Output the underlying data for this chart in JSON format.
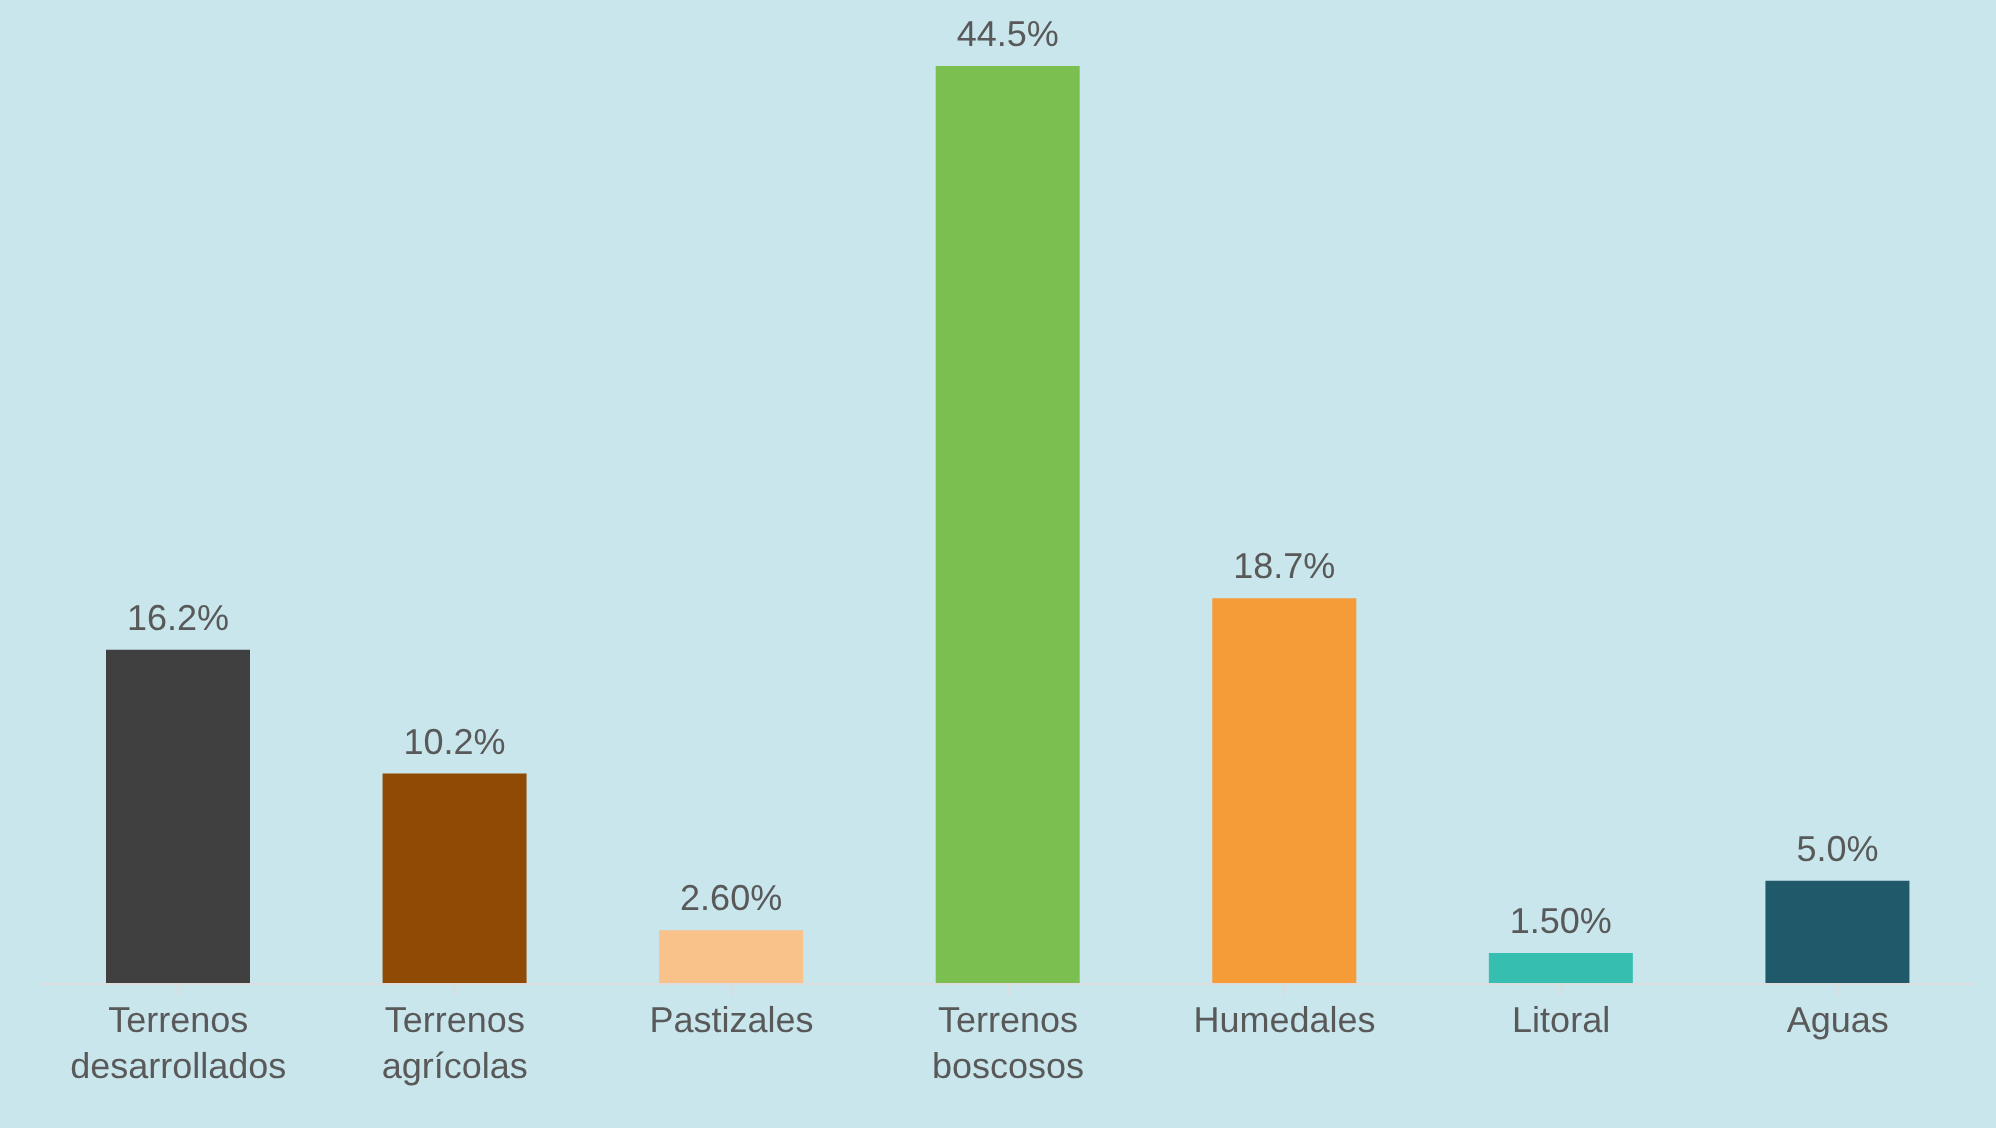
{
  "chart_data": {
    "type": "bar",
    "categories": [
      "Terrenos desarrollados",
      "Terrenos agrícolas",
      "Pastizales",
      "Terrenos boscosos",
      "Humedales",
      "Litoral",
      "Aguas"
    ],
    "values": [
      16.2,
      10.2,
      2.6,
      44.5,
      18.7,
      1.5,
      5.0
    ],
    "value_labels": [
      "16.2%",
      "10.2%",
      "2.60%",
      "44.5%",
      "18.7%",
      "1.50%",
      "5.0%"
    ],
    "colors": [
      "#404040",
      "#8f4a06",
      "#f9c28a",
      "#7abf50",
      "#f59b38",
      "#36bfb1",
      "#205a6a"
    ],
    "grid": false,
    "legend": false
  }
}
